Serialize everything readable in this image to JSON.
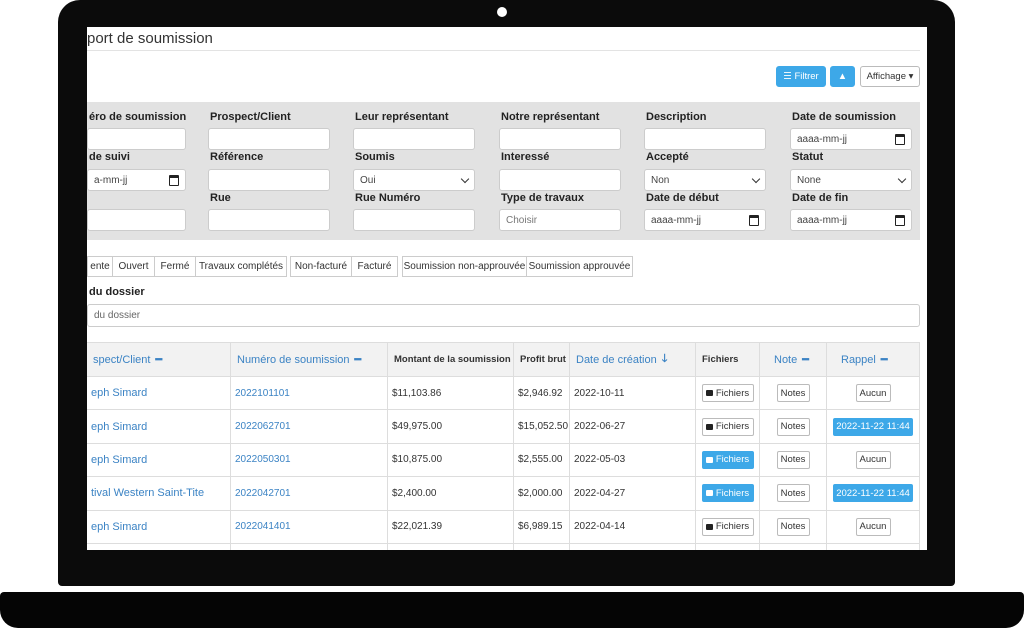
{
  "header": {
    "title": "port de soumission",
    "buttons": {
      "filter": "Filtrer",
      "display": "Affichage"
    }
  },
  "filters": [
    [
      {
        "label": "éro de soumission",
        "kind": "text"
      },
      {
        "label": "Prospect/Client",
        "kind": "text"
      },
      {
        "label": "Leur représentant",
        "kind": "text"
      },
      {
        "label": "Notre représentant",
        "kind": "text"
      },
      {
        "label": "Description",
        "kind": "text"
      },
      {
        "label": "Date de soumission",
        "kind": "date",
        "value": "aaaa-mm-jj"
      }
    ],
    [
      {
        "label": "de suivi",
        "kind": "date",
        "value": "a-mm-jj"
      },
      {
        "label": "Référence",
        "kind": "text"
      },
      {
        "label": "Soumis",
        "kind": "select",
        "value": "Oui"
      },
      {
        "label": "Interessé",
        "kind": "text"
      },
      {
        "label": "Accepté",
        "kind": "select",
        "value": "Non"
      },
      {
        "label": "Statut",
        "kind": "select",
        "value": "None"
      }
    ],
    [
      {
        "kind": "text"
      },
      {
        "label": "Rue",
        "kind": "text"
      },
      {
        "label": "Rue Numéro",
        "kind": "text"
      },
      {
        "label": "Type de travaux",
        "kind": "text",
        "value": "Choisir"
      },
      {
        "label": "Date de début",
        "kind": "date",
        "value": "aaaa-mm-jj"
      },
      {
        "label": "Date de fin",
        "kind": "date",
        "value": "aaaa-mm-jj"
      }
    ]
  ],
  "status_groups": [
    [
      "ente",
      "Ouvert",
      "Fermé",
      "Travaux complétés"
    ],
    [
      "Non-facturé",
      "Facturé"
    ],
    [
      "Soumission non-approuvée",
      "Soumission approuvée"
    ]
  ],
  "dossier": {
    "label": "du dossier",
    "placeholder": "du dossier"
  },
  "table": {
    "columns": [
      {
        "label": "spect/Client",
        "link": true,
        "icon": "minus"
      },
      {
        "label": "Numéro de soumission",
        "link": true,
        "icon": "minus"
      },
      {
        "label": "Montant de la soumission",
        "link": false
      },
      {
        "label": "Profit brut",
        "link": false
      },
      {
        "label": "Date de création",
        "link": true,
        "icon": "down"
      },
      {
        "label": "Fichiers",
        "link": false
      },
      {
        "label": "Note",
        "link": true,
        "icon": "minus"
      },
      {
        "label": "Rappel",
        "link": true,
        "icon": "minus"
      }
    ],
    "rows": [
      {
        "client": "eph Simard",
        "number": "2022101101",
        "amount": "$11,103.86",
        "profit": "$2,946.92",
        "date": "2022-10-11",
        "files": "Fichiers",
        "files_active": false,
        "notes": "Notes",
        "reminder": "Aucun",
        "reminder_active": false
      },
      {
        "client": "eph Simard",
        "number": "2022062701",
        "amount": "$49,975.00",
        "profit": "$15,052.50",
        "date": "2022-06-27",
        "files": "Fichiers",
        "files_active": false,
        "notes": "Notes",
        "reminder": "2022-11-22 11:44",
        "reminder_active": true
      },
      {
        "client": "eph Simard",
        "number": "2022050301",
        "amount": "$10,875.00",
        "profit": "$2,555.00",
        "date": "2022-05-03",
        "files": "Fichiers",
        "files_active": true,
        "notes": "Notes",
        "reminder": "Aucun",
        "reminder_active": false
      },
      {
        "client": "tival Western Saint-Tite",
        "number": "2022042701",
        "amount": "$2,400.00",
        "profit": "$2,000.00",
        "date": "2022-04-27",
        "files": "Fichiers",
        "files_active": true,
        "notes": "Notes",
        "reminder": "2022-11-22 11:44",
        "reminder_active": true
      },
      {
        "client": "eph Simard",
        "number": "2022041401",
        "amount": "$22,021.39",
        "profit": "$6,989.15",
        "date": "2022-04-14",
        "files": "Fichiers",
        "files_active": false,
        "notes": "Notes",
        "reminder": "Aucun",
        "reminder_active": false
      }
    ]
  }
}
